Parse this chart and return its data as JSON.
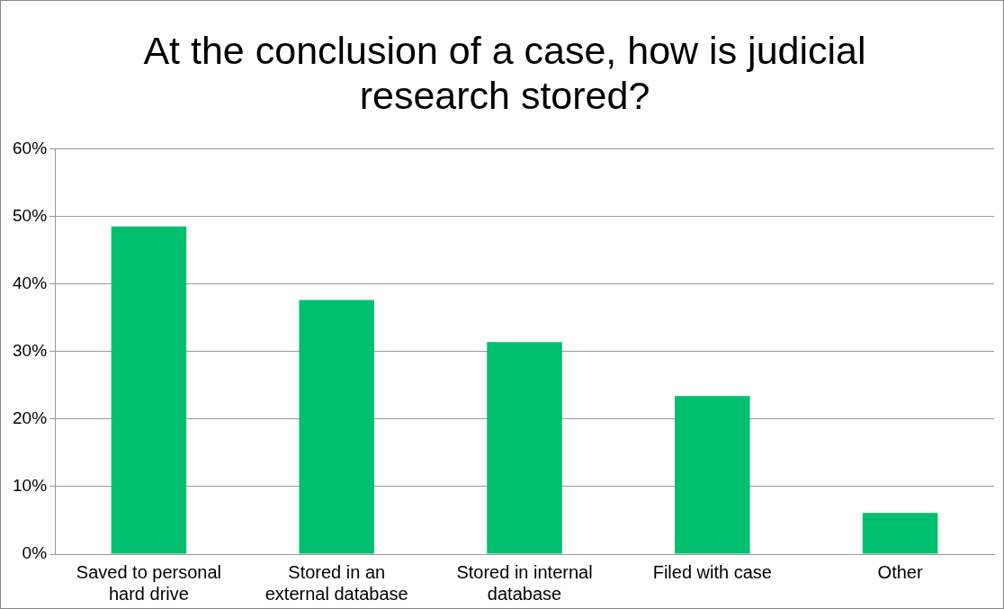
{
  "chart_data": {
    "type": "bar",
    "title": "At the conclusion of a case, how is judicial research stored?",
    "categories": [
      "Saved to personal hard drive",
      "Stored in an external database",
      "Stored in internal database",
      "Filed with case",
      "Other"
    ],
    "values": [
      48.5,
      37.6,
      31.4,
      23.4,
      6.1
    ],
    "color": "#00bf6f",
    "ylim": [
      0,
      60
    ],
    "yticks": [
      {
        "value": 0,
        "label": "0%"
      },
      {
        "value": 10,
        "label": "10%"
      },
      {
        "value": 20,
        "label": "20%"
      },
      {
        "value": 30,
        "label": "30%"
      },
      {
        "value": 40,
        "label": "40%"
      },
      {
        "value": 50,
        "label": "50%"
      },
      {
        "value": 60,
        "label": "60%"
      }
    ],
    "grid": "y",
    "legend": false
  }
}
